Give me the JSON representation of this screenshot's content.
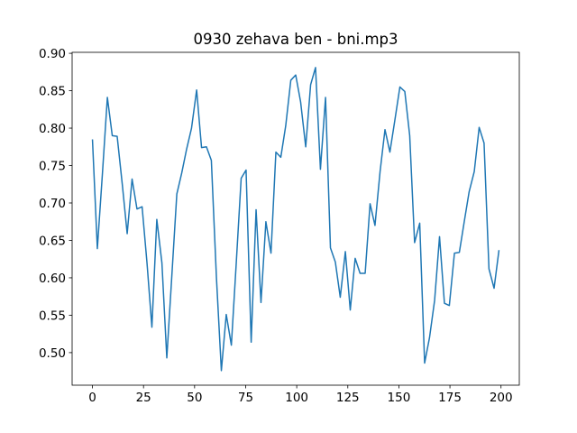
{
  "chart_data": {
    "type": "line",
    "title": "0930 zehava ben - bni.mp3",
    "x": [
      0,
      2.4,
      4.9,
      7.3,
      9.7,
      12.1,
      14.6,
      17.0,
      19.4,
      21.8,
      24.3,
      26.7,
      29.1,
      31.5,
      34.0,
      36.4,
      38.8,
      41.3,
      43.7,
      46.1,
      48.5,
      51.0,
      53.4,
      55.8,
      58.2,
      60.7,
      63.1,
      65.5,
      68.0,
      70.4,
      72.8,
      75.2,
      77.7,
      80.1,
      82.5,
      84.9,
      87.4,
      89.8,
      92.2,
      94.6,
      97.1,
      99.5,
      101.9,
      104.4,
      106.8,
      109.2,
      111.6,
      114.1,
      116.5,
      118.9,
      121.3,
      123.8,
      126.2,
      128.6,
      131.0,
      133.5,
      135.9,
      138.3,
      140.8,
      143.2,
      145.6,
      148.0,
      150.5,
      152.9,
      155.3,
      157.7,
      160.2,
      162.6,
      165.0,
      167.5,
      169.9,
      172.3,
      174.7,
      177.2,
      179.6,
      182.0,
      184.4,
      186.9,
      189.3,
      191.7,
      194.1,
      196.6,
      199.0
    ],
    "series": [
      {
        "color": "#1f77b4",
        "values": [
          0.785,
          0.639,
          0.74,
          0.841,
          0.79,
          0.789,
          0.725,
          0.659,
          0.732,
          0.692,
          0.695,
          0.62,
          0.534,
          0.678,
          0.62,
          0.493,
          0.6,
          0.712,
          0.74,
          0.772,
          0.8,
          0.851,
          0.774,
          0.775,
          0.757,
          0.6,
          0.476,
          0.551,
          0.51,
          0.62,
          0.733,
          0.744,
          0.514,
          0.691,
          0.567,
          0.675,
          0.633,
          0.768,
          0.761,
          0.803,
          0.864,
          0.871,
          0.835,
          0.775,
          0.858,
          0.881,
          0.745,
          0.841,
          0.64,
          0.621,
          0.574,
          0.635,
          0.557,
          0.626,
          0.606,
          0.606,
          0.699,
          0.67,
          0.742,
          0.798,
          0.768,
          0.81,
          0.855,
          0.849,
          0.79,
          0.647,
          0.673,
          0.486,
          0.52,
          0.57,
          0.655,
          0.566,
          0.563,
          0.633,
          0.634,
          0.675,
          0.715,
          0.742,
          0.801,
          0.78,
          0.612,
          0.586,
          0.637
        ]
      }
    ],
    "xlim": [
      -9.95,
      208.95
    ],
    "xticks": [
      0,
      25,
      50,
      75,
      100,
      125,
      150,
      175,
      200
    ],
    "ylim": [
      0.4565,
      0.9013
    ],
    "yticks": [
      {
        "value": 0.5,
        "label": "0.50"
      },
      {
        "value": 0.55,
        "label": "0.55"
      },
      {
        "value": 0.6,
        "label": "0.60"
      },
      {
        "value": 0.65,
        "label": "0.65"
      },
      {
        "value": 0.7,
        "label": "0.70"
      },
      {
        "value": 0.75,
        "label": "0.75"
      },
      {
        "value": 0.8,
        "label": "0.80"
      },
      {
        "value": 0.85,
        "label": "0.85"
      },
      {
        "value": 0.9,
        "label": "0.90"
      }
    ],
    "grid": false
  }
}
